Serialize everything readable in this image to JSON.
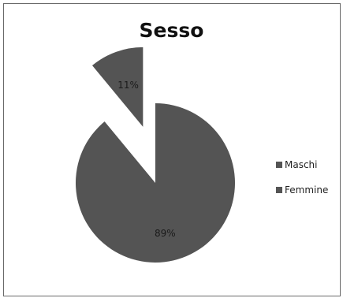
{
  "chart_data": {
    "type": "pie",
    "title": "Sesso",
    "slices": [
      {
        "label": "Maschi",
        "value": 89,
        "data_label": "89%",
        "exploded": false
      },
      {
        "label": "Femmine",
        "value": 11,
        "data_label": "11%",
        "exploded": true
      }
    ],
    "legend_position": "right",
    "colors": {
      "slice": "#545454",
      "background": "#ffffff",
      "border": "#6a6a6a",
      "label": "#1a1a1a"
    }
  }
}
